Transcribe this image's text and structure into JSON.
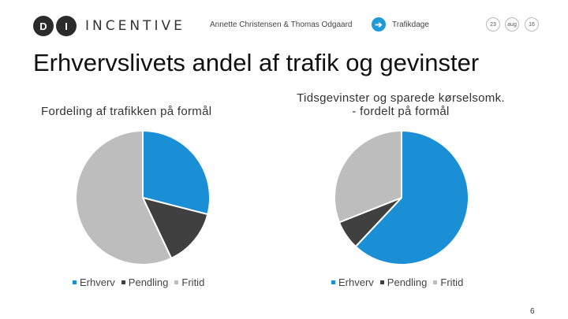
{
  "header": {
    "logo_mark_1": "D",
    "logo_mark_2": "I",
    "logo_text": "INCENTIVE",
    "authors": "Annette Christensen & Thomas Odgaard",
    "event": "Trafikdage",
    "date_day": "23",
    "date_month": "aug",
    "date_year": "16"
  },
  "slide": {
    "title": "Erhvervslivets andel af trafik og gevinster",
    "page_number": "6"
  },
  "colors": {
    "erhverv": "#1a8fd6",
    "pendling": "#404040",
    "fritid": "#bdbdbd",
    "accent": "#1e9ad6"
  },
  "chart_data": [
    {
      "type": "pie",
      "title": "Fordeling af trafikken på formål",
      "categories": [
        "Erhverv",
        "Pendling",
        "Fritid"
      ],
      "values": [
        29,
        14,
        57
      ],
      "legend_position": "bottom"
    },
    {
      "type": "pie",
      "title": "Tidsgevinster og sparede kørselsomk. - fordelt på formål",
      "categories": [
        "Erhverv",
        "Pendling",
        "Fritid"
      ],
      "values": [
        62,
        7,
        31
      ],
      "legend_position": "bottom"
    }
  ]
}
